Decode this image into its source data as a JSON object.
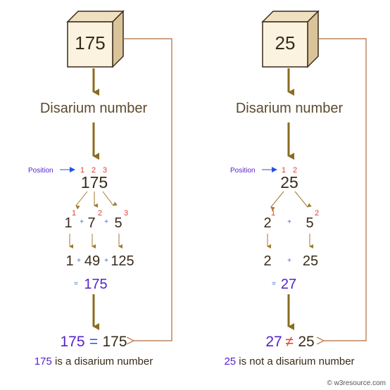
{
  "left": {
    "number": "175",
    "title": "Disarium number",
    "position_label": "Position",
    "positions": [
      "1",
      "2",
      "3"
    ],
    "number_split": "175",
    "digits": [
      "1",
      "7",
      "5"
    ],
    "exponents": [
      "1",
      "2",
      "3"
    ],
    "plus": "+",
    "powers": [
      "1",
      "49",
      "125"
    ],
    "sum_eq": "=",
    "sum": "175",
    "compare_left": "175",
    "compare_op": "=",
    "compare_right": "175",
    "conclusion_number": "175",
    "conclusion_text": " is a disarium number"
  },
  "right": {
    "number": "25",
    "title": "Disarium number",
    "position_label": "Position",
    "positions": [
      "1",
      "2"
    ],
    "number_split": "25",
    "digits": [
      "2",
      "5"
    ],
    "exponents": [
      "1",
      "2"
    ],
    "plus": "+",
    "powers": [
      "2",
      "25"
    ],
    "sum_eq": "=",
    "sum": "27",
    "compare_left": "27",
    "compare_op": "≠",
    "compare_right": "25",
    "conclusion_number": "25",
    "conclusion_text": " is not a disarium number"
  },
  "credit": "© w3resource.com",
  "colors": {
    "arrow": "#8b6b1f",
    "connector": "#b06a3a",
    "cube_front": "#fbf3e0",
    "cube_top": "#efe1c0",
    "cube_side": "#d9c49a",
    "purple": "#5522cc",
    "blue": "#2255dd",
    "red": "#e0402a"
  }
}
